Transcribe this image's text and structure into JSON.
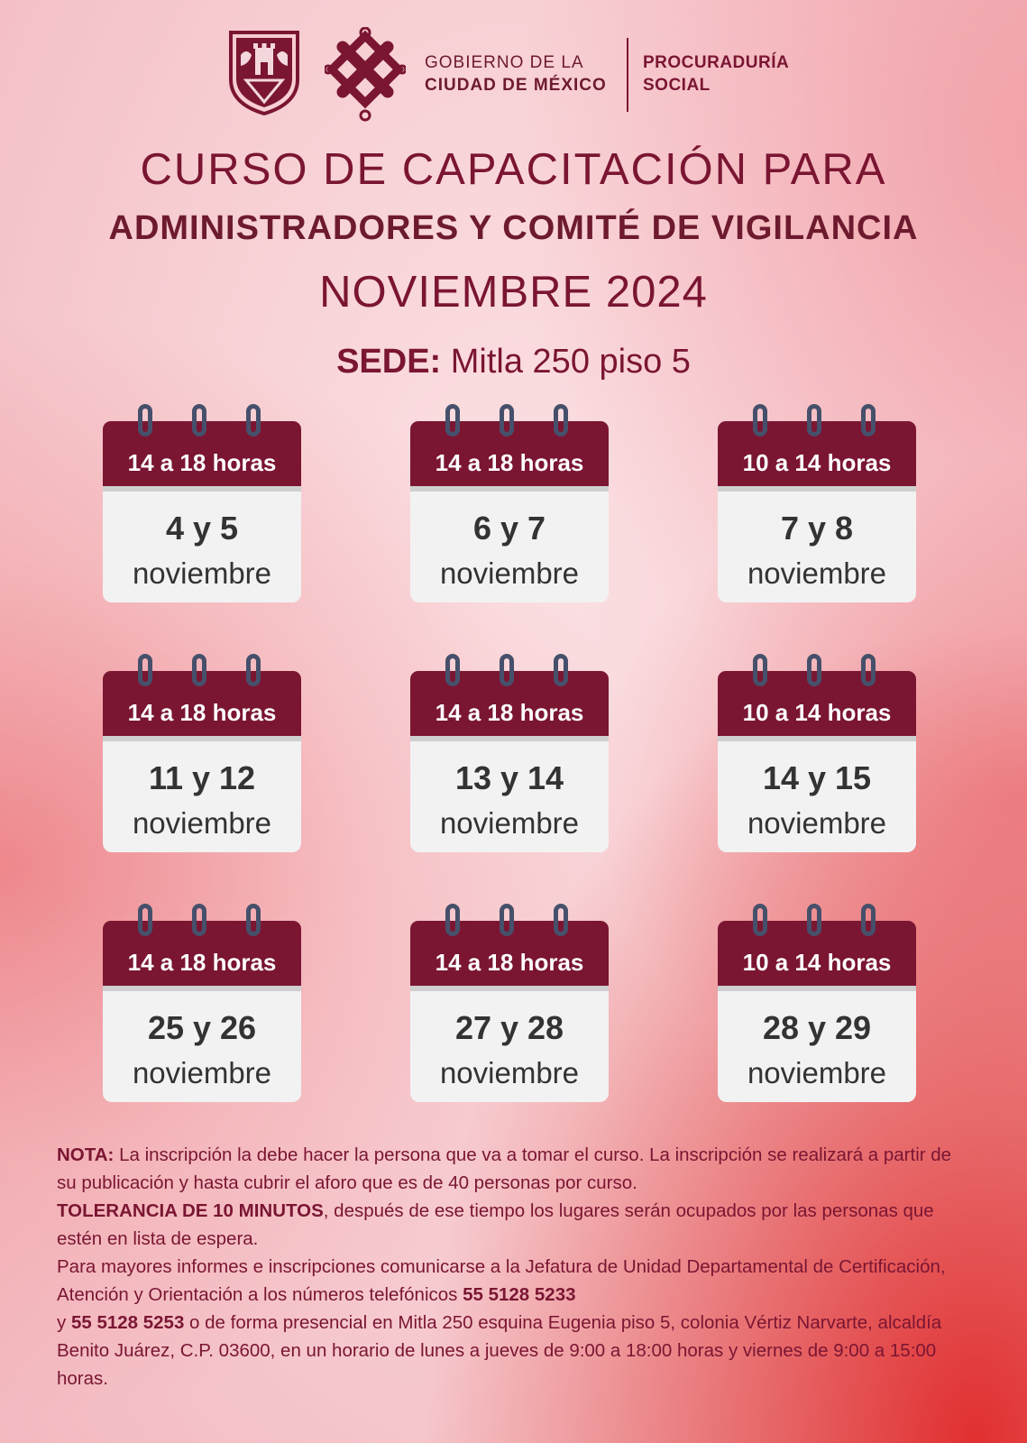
{
  "header": {
    "gov_line1": "GOBIERNO DE LA",
    "gov_line2": "CIUDAD DE MÉXICO",
    "proc_line1": "PROCURADURÍA",
    "proc_line2": "SOCIAL"
  },
  "title": {
    "line1": "CURSO DE CAPACITACIÓN PARA",
    "line2": "ADMINISTRADORES Y COMITÉ DE VIGILANCIA",
    "line3": "NOVIEMBRE 2024"
  },
  "sede": {
    "label": "SEDE:",
    "value": " Mitla 250 piso 5"
  },
  "calendars": [
    {
      "hours": "14 a 18 horas",
      "days": "4 y 5",
      "month": "noviembre"
    },
    {
      "hours": "14 a 18 horas",
      "days": "6 y 7",
      "month": "noviembre"
    },
    {
      "hours": "10 a 14 horas",
      "days": "7 y 8",
      "month": "noviembre"
    },
    {
      "hours": "14 a 18 horas",
      "days": "11 y 12",
      "month": "noviembre"
    },
    {
      "hours": "14 a 18 horas",
      "days": "13 y 14",
      "month": "noviembre"
    },
    {
      "hours": "10 a 14 horas",
      "days": "14 y 15",
      "month": "noviembre"
    },
    {
      "hours": "14 a 18 horas",
      "days": "25 y 26",
      "month": "noviembre"
    },
    {
      "hours": "14 a 18 horas",
      "days": "27 y 28",
      "month": "noviembre"
    },
    {
      "hours": "10 a 14 horas",
      "days": "28 y 29",
      "month": "noviembre"
    }
  ],
  "notes": {
    "nota_label": "NOTA:",
    "nota_text": " La inscripción la debe hacer la persona que va a tomar el curso.  La inscripción se realizará a partir de su publicación y hasta cubrir el aforo que es de 40 personas por curso.",
    "tolerancia_label": "TOLERANCIA DE 10 MINUTOS",
    "tolerancia_text": ", después de ese tiempo los lugares serán ocupados por las personas que estén en lista de espera.",
    "info_text1": "Para mayores informes e inscripciones comunicarse a la Jefatura de Unidad Departamental de Certificación, Atención y Orientación a los números telefónicos ",
    "phone1": "55 5128 5233",
    "info_text2": "y ",
    "phone2": "55 5128 5253",
    "info_text3": " o de forma presencial en Mitla 250 esquina Eugenia piso 5, colonia Vértiz Narvarte, alcaldía Benito Juárez, C.P. 03600, en un horario de lunes a jueves de 9:00 a 18:00 horas y viernes de 9:00 a 15:00 horas."
  },
  "colors": {
    "maroon": "#7a1532",
    "ring": "#46506b",
    "card": "#f2f2f2"
  }
}
